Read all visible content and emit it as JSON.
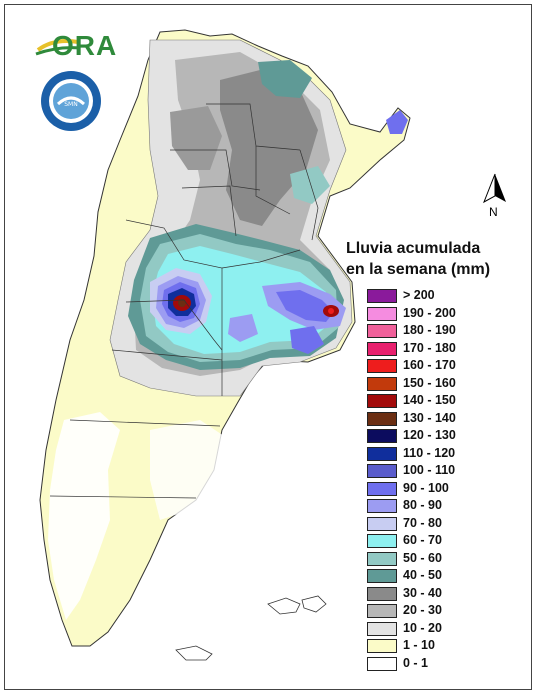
{
  "logo": {
    "text": "ORA"
  },
  "seal": {
    "text": "SERVICIO METEOROLOGICO NACIONAL · ARGENTINA"
  },
  "north_arrow": {
    "label": "N"
  },
  "legend": {
    "title_line1": "Lluvia acumulada",
    "title_line2": "en la semana (mm)",
    "items": [
      {
        "label": "> 200",
        "color": "#8a1a9b"
      },
      {
        "label": "190 - 200",
        "color": "#f58ce0"
      },
      {
        "label": "180 - 190",
        "color": "#f0609a"
      },
      {
        "label": "170 - 180",
        "color": "#e8206e"
      },
      {
        "label": "160 - 170",
        "color": "#ee1d1d"
      },
      {
        "label": "150 - 160",
        "color": "#c23a0c"
      },
      {
        "label": "140 - 150",
        "color": "#a20a0a"
      },
      {
        "label": "130 - 140",
        "color": "#6b2e12"
      },
      {
        "label": "120 - 130",
        "color": "#0c0c5e"
      },
      {
        "label": "110 - 120",
        "color": "#102e9c"
      },
      {
        "label": "100 - 110",
        "color": "#5a5ccc"
      },
      {
        "label": "90 - 100",
        "color": "#6f6fee"
      },
      {
        "label": "80 - 90",
        "color": "#9c9cf2"
      },
      {
        "label": "70 - 80",
        "color": "#c8cdf2"
      },
      {
        "label": "60 - 70",
        "color": "#8ef0f0"
      },
      {
        "label": "50 - 60",
        "color": "#92c9c4"
      },
      {
        "label": "40 - 50",
        "color": "#5f9a96"
      },
      {
        "label": "30 - 40",
        "color": "#8a8a8a"
      },
      {
        "label": "20 - 30",
        "color": "#b7b7b7"
      },
      {
        "label": "10 - 20",
        "color": "#e3e3e3"
      },
      {
        "label": "1 - 10",
        "color": "#fbfbc8"
      },
      {
        "label": "0 - 1",
        "color": "#ffffff"
      }
    ]
  }
}
